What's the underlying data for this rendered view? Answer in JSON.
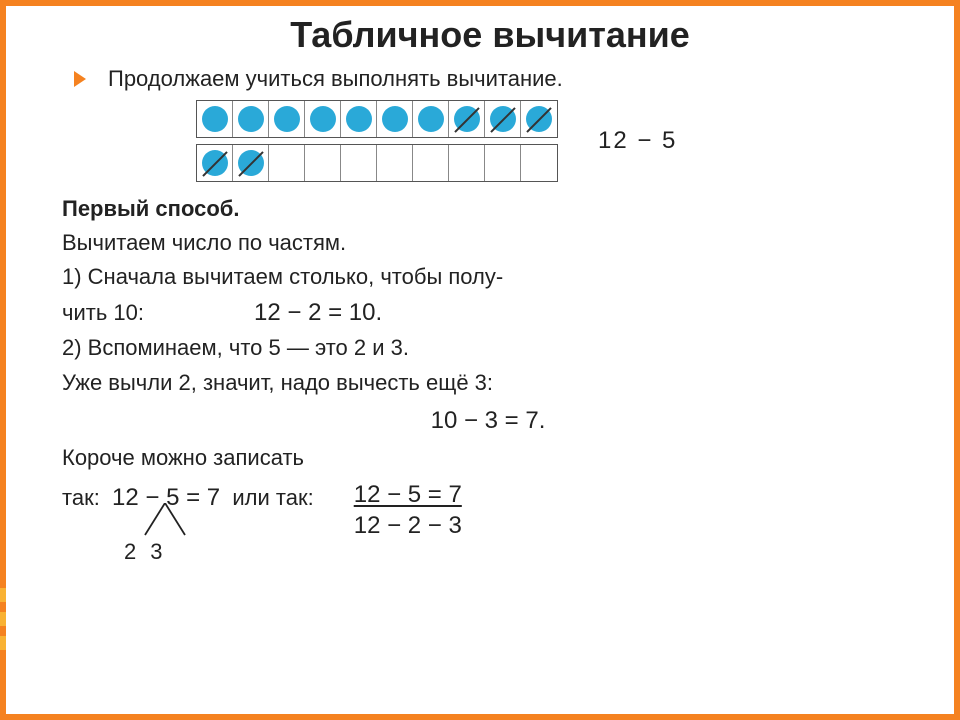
{
  "colors": {
    "frame": "#f58220",
    "stripe": "#f9b233",
    "circle": "#2aa9d8",
    "cellBorder": "#888888",
    "text": "#222222"
  },
  "title": "Табличное вычитание",
  "intro": "Продолжаем  учиться  выполнять  вычитание.",
  "diagram": {
    "top_row": [
      {
        "filled": true,
        "crossed": false
      },
      {
        "filled": true,
        "crossed": false
      },
      {
        "filled": true,
        "crossed": false
      },
      {
        "filled": true,
        "crossed": false
      },
      {
        "filled": true,
        "crossed": false
      },
      {
        "filled": true,
        "crossed": false
      },
      {
        "filled": true,
        "crossed": false
      },
      {
        "filled": true,
        "crossed": true
      },
      {
        "filled": true,
        "crossed": true
      },
      {
        "filled": true,
        "crossed": true
      }
    ],
    "bottom_row": [
      {
        "filled": true,
        "crossed": true
      },
      {
        "filled": true,
        "crossed": true
      },
      {
        "filled": false,
        "crossed": false
      },
      {
        "filled": false,
        "crossed": false
      },
      {
        "filled": false,
        "crossed": false
      },
      {
        "filled": false,
        "crossed": false
      },
      {
        "filled": false,
        "crossed": false
      },
      {
        "filled": false,
        "crossed": false
      },
      {
        "filled": false,
        "crossed": false
      },
      {
        "filled": false,
        "crossed": false
      }
    ],
    "side_expr": "12  −  5"
  },
  "method_title": "Первый  способ.",
  "line_sub": "Вычитаем  число  по  частям.",
  "step1_a": "1)  Сначала  вычитаем  столько,  чтобы  полу-",
  "step1_b": "чить  10:",
  "eq1": "12  −  2  =  10.",
  "step2_a": "2)  Вспоминаем,  что  5  —  это  2  и  3.",
  "step2_b": "Уже  вычли  2,  значит,  надо  вычесть  ещё  3:",
  "eq2": "10  −  3  =  7.",
  "short_a": "Короче  можно  записать",
  "short_b_prefix": "так:",
  "short_expr": "12  −  5  =  7",
  "or_label": "или  так:",
  "fraction_top": "12  −  5  =  7",
  "fraction_bottom": "12  −  2  −  3",
  "branch": {
    "a": "2",
    "b": "3"
  }
}
